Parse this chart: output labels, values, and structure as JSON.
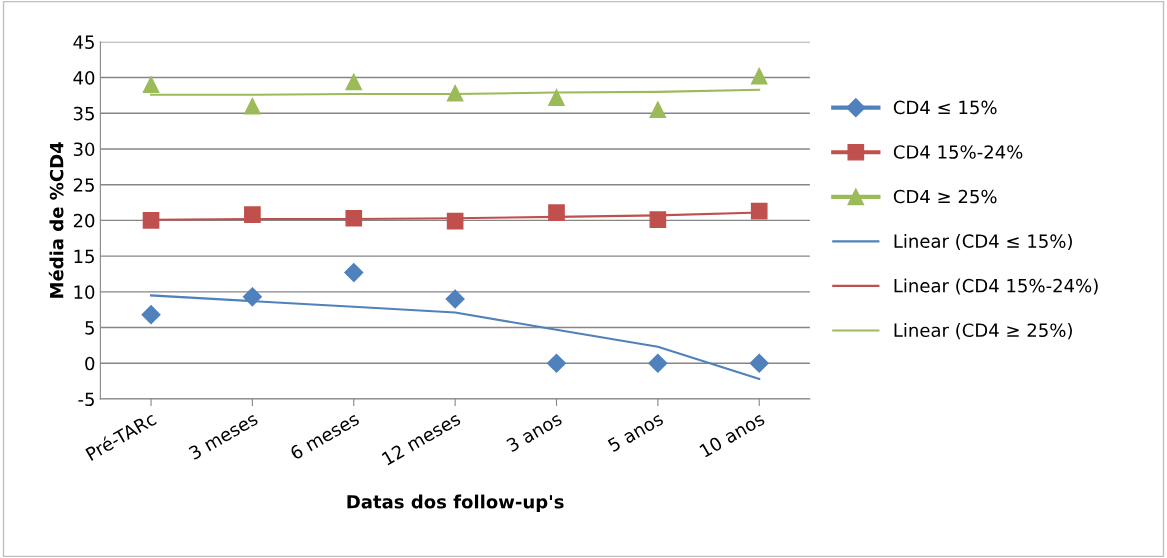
{
  "chart_data": {
    "type": "scatter",
    "xlabel": "Datas dos follow-up's",
    "ylabel": "Média de %CD4",
    "categories": [
      "Pré-TARc",
      "3 meses",
      "6 meses",
      "12 meses",
      "3 anos",
      "5 anos",
      "10 anos"
    ],
    "ylim": [
      -5,
      45
    ],
    "yticks": [
      -5,
      0,
      5,
      10,
      15,
      20,
      25,
      30,
      35,
      40,
      45
    ],
    "grid": "y",
    "legend": "right",
    "series": [
      {
        "name": "CD4 ≤ 15%",
        "color": "#4f81bd",
        "marker": "diamond",
        "values": [
          6.8,
          9.3,
          12.7,
          9.0,
          0,
          0,
          0
        ]
      },
      {
        "name": "CD4 15%-24%",
        "color": "#c0504d",
        "marker": "square",
        "values": [
          20.0,
          20.8,
          20.3,
          19.9,
          21.1,
          20.1,
          21.3
        ]
      },
      {
        "name": "CD4 ≥ 25%",
        "color": "#9bbb59",
        "marker": "triangle",
        "values": [
          39.0,
          36.0,
          39.4,
          37.8,
          37.2,
          35.5,
          40.2
        ]
      },
      {
        "name": "Linear (CD4 ≤ 15%)",
        "type": "line",
        "color": "#4f81bd",
        "marker": "none",
        "values": [
          9.5,
          8.7,
          7.9,
          7.1,
          4.7,
          2.3,
          -2.2
        ]
      },
      {
        "name": "Linear (CD4 15%-24%)",
        "type": "line",
        "color": "#c0504d",
        "marker": "none",
        "values": [
          20.1,
          20.2,
          20.2,
          20.3,
          20.5,
          20.7,
          21.1
        ]
      },
      {
        "name": "Linear (CD4 ≥ 25%)",
        "type": "line",
        "color": "#9bbb59",
        "marker": "none",
        "values": [
          37.6,
          37.6,
          37.7,
          37.7,
          37.9,
          38.0,
          38.3
        ]
      }
    ]
  }
}
